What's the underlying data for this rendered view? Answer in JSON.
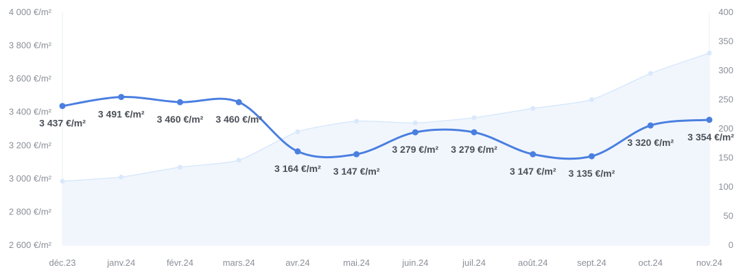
{
  "chart_data": {
    "type": "line",
    "categories": [
      "déc.23",
      "janv.24",
      "févr.24",
      "mars.24",
      "avr.24",
      "mai.24",
      "juin.24",
      "juil.24",
      "août.24",
      "sept.24",
      "oct.24",
      "nov.24"
    ],
    "series": [
      {
        "axis": "left",
        "style": "line",
        "color": "#4a7fe0",
        "values": [
          3437,
          3491,
          3460,
          3460,
          3164,
          3147,
          3279,
          3279,
          3147,
          3135,
          3320,
          3354
        ],
        "labels": [
          "3 437 €/m²",
          "3 491 €/m²",
          "3 460 €/m²",
          "3 460 €/m²",
          "3 164 €/m²",
          "3 147 €/m²",
          "3 279 €/m²",
          "3 279 €/m²",
          "3 147 €/m²",
          "3 135 €/m²",
          "3 320 €/m²",
          "3 354 €/m²"
        ]
      },
      {
        "axis": "right",
        "style": "area",
        "color": "#d9e8fb",
        "fill": "#f1f6fd",
        "values": [
          110,
          117,
          134,
          146,
          195,
          213,
          210,
          219,
          235,
          250,
          295,
          330
        ]
      }
    ],
    "y_left": {
      "min": 2600,
      "max": 4000,
      "ticks": [
        2600,
        2800,
        3000,
        3200,
        3400,
        3600,
        3800,
        4000
      ],
      "tick_labels": [
        "2 600 €/m²",
        "2 800 €/m²",
        "3 000 €/m²",
        "3 200 €/m²",
        "3 400 €/m²",
        "3 600 €/m²",
        "3 800 €/m²",
        "4 000 €/m²"
      ]
    },
    "y_right": {
      "min": 0,
      "max": 400,
      "ticks": [
        0,
        50,
        100,
        150,
        200,
        250,
        300,
        350,
        400
      ],
      "tick_labels": [
        "0",
        "50",
        "100",
        "150",
        "200",
        "250",
        "300",
        "350",
        "400"
      ]
    },
    "grid": false,
    "legend": "none",
    "title": "",
    "xlabel": "",
    "ylabel": ""
  }
}
